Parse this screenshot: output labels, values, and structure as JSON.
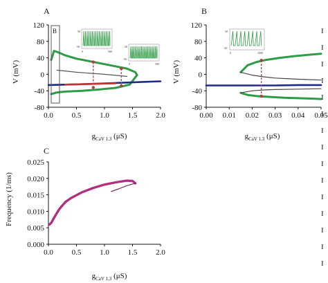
{
  "chart_data": [
    {
      "panel": "A",
      "type": "line",
      "xlabel": "g",
      "xlabel_sub": "CaV 1.3",
      "xlabel_unit": " (μS)",
      "ylabel": "V (mV)",
      "xlim": [
        0,
        2.0
      ],
      "ylim": [
        -80,
        120
      ],
      "xticks": [
        "0.0",
        "0.5",
        "1.0",
        "1.5",
        "2.0"
      ],
      "yticks": [
        "-80",
        "-40",
        "0",
        "40",
        "80",
        "120"
      ],
      "box_label": "B",
      "inset_ticks": [
        "50",
        "-50",
        "50",
        "-50",
        "0",
        "500",
        "0",
        "500"
      ],
      "series": [
        {
          "role": "osc-max",
          "color": "#2e9b45",
          "x": [
            0.05,
            0.1,
            0.2,
            0.3,
            0.5,
            0.8,
            1.1,
            1.4,
            1.55,
            1.58
          ],
          "y": [
            35,
            57,
            52,
            46,
            38,
            30,
            22,
            14,
            5,
            -2
          ]
        },
        {
          "role": "osc-min",
          "color": "#2e9b45",
          "x": [
            0.05,
            0.15,
            0.3,
            0.6,
            0.9,
            1.2,
            1.45,
            1.58
          ],
          "y": [
            -48,
            -44,
            -42,
            -40,
            -37,
            -33,
            -25,
            -2
          ]
        },
        {
          "role": "stable-fixed-point",
          "color": "#1b2a86",
          "x": [
            0.0,
            0.3,
            0.6,
            1.0,
            1.4,
            1.8,
            2.0
          ],
          "y": [
            -26,
            -25,
            -24,
            -22,
            -20,
            -18,
            -17
          ]
        },
        {
          "role": "unstable-fixed-point",
          "color": "#c83232",
          "x": [
            0.3,
            0.6,
            0.9,
            1.2
          ],
          "y": [
            -25,
            -24,
            -23,
            -22
          ]
        },
        {
          "role": "unstable-branch",
          "color": "#555555",
          "x": [
            0.15,
            0.5,
            1.0,
            1.4
          ],
          "y": [
            10,
            5,
            0,
            -5
          ]
        }
      ],
      "markers": [
        {
          "x": 0.8,
          "y1": -32,
          "y2": 30
        },
        {
          "x": 1.3,
          "y1": -28,
          "y2": 14
        }
      ]
    },
    {
      "panel": "B",
      "type": "line",
      "xlabel": "g",
      "xlabel_sub": "CaV 1.3",
      "xlabel_unit": " (μS)",
      "ylabel": "V (mV)",
      "xlim": [
        0,
        0.05
      ],
      "ylim": [
        -80,
        120
      ],
      "xticks": [
        "0.00",
        "0.01",
        "0.02",
        "0.03",
        "0.04",
        "0.05"
      ],
      "yticks": [
        "-80",
        "-40",
        "0",
        "40",
        "80",
        "120"
      ],
      "series": [
        {
          "role": "osc-max",
          "color": "#2e9b45",
          "x": [
            0.015,
            0.018,
            0.022,
            0.026,
            0.032,
            0.038,
            0.044,
            0.05
          ],
          "y": [
            5,
            22,
            30,
            35,
            40,
            44,
            47,
            50
          ]
        },
        {
          "role": "osc-min",
          "color": "#2e9b45",
          "x": [
            0.015,
            0.018,
            0.022,
            0.028,
            0.034,
            0.04,
            0.046,
            0.05
          ],
          "y": [
            -45,
            -50,
            -53,
            -55,
            -57,
            -58,
            -59,
            -60
          ]
        },
        {
          "role": "stable-fixed-point",
          "color": "#1b2a86",
          "x": [
            0.0,
            0.01,
            0.02,
            0.03,
            0.04,
            0.05
          ],
          "y": [
            -27,
            -27,
            -27,
            -27,
            -26,
            -26
          ]
        },
        {
          "role": "unstable-upper",
          "color": "#444444",
          "x": [
            0.015,
            0.02,
            0.025,
            0.03,
            0.04,
            0.05
          ],
          "y": [
            5,
            -2,
            -6,
            -9,
            -12,
            -14
          ]
        },
        {
          "role": "unstable-lower",
          "color": "#444444",
          "x": [
            0.015,
            0.02,
            0.025,
            0.03,
            0.04,
            0.05
          ],
          "y": [
            -45,
            -40,
            -38,
            -37,
            -36,
            -35
          ]
        }
      ],
      "markers": [
        {
          "x": 0.024,
          "y1": -53,
          "y2": 34
        }
      ],
      "inset_ticks": [
        "50",
        "-50",
        "0",
        "1000"
      ]
    },
    {
      "panel": "C",
      "type": "line",
      "xlabel": "g",
      "xlabel_sub": "CaV 1.3",
      "xlabel_unit": " (μS)",
      "ylabel": "Frequency (1/ms)",
      "xlim": [
        0,
        2.0
      ],
      "ylim": [
        0,
        0.025
      ],
      "xticks": [
        "0.0",
        "0.5",
        "1.0",
        "1.5",
        "2.0"
      ],
      "yticks": [
        "0.000",
        "0.005",
        "0.010",
        "0.015",
        "0.020",
        "0.025"
      ],
      "series": [
        {
          "role": "frequency",
          "color": "#b0307e",
          "x": [
            0.02,
            0.05,
            0.1,
            0.15,
            0.2,
            0.3,
            0.4,
            0.6,
            0.8,
            1.0,
            1.2,
            1.4,
            1.5,
            1.55
          ],
          "y": [
            0.006,
            0.0065,
            0.008,
            0.0095,
            0.0108,
            0.0128,
            0.014,
            0.0158,
            0.0171,
            0.0181,
            0.0188,
            0.0193,
            0.0192,
            0.0185
          ]
        },
        {
          "role": "frequency-tail",
          "color": "#6b2f55",
          "x": [
            1.55,
            1.4,
            1.25,
            1.12
          ],
          "y": [
            0.0185,
            0.0178,
            0.0168,
            0.016
          ]
        }
      ]
    }
  ],
  "right_edge_glyphs": [
    "I",
    "I",
    "I",
    "I",
    "I",
    "I",
    "I",
    "I",
    "I",
    "I",
    "I",
    "I",
    "I",
    "I",
    "I"
  ]
}
